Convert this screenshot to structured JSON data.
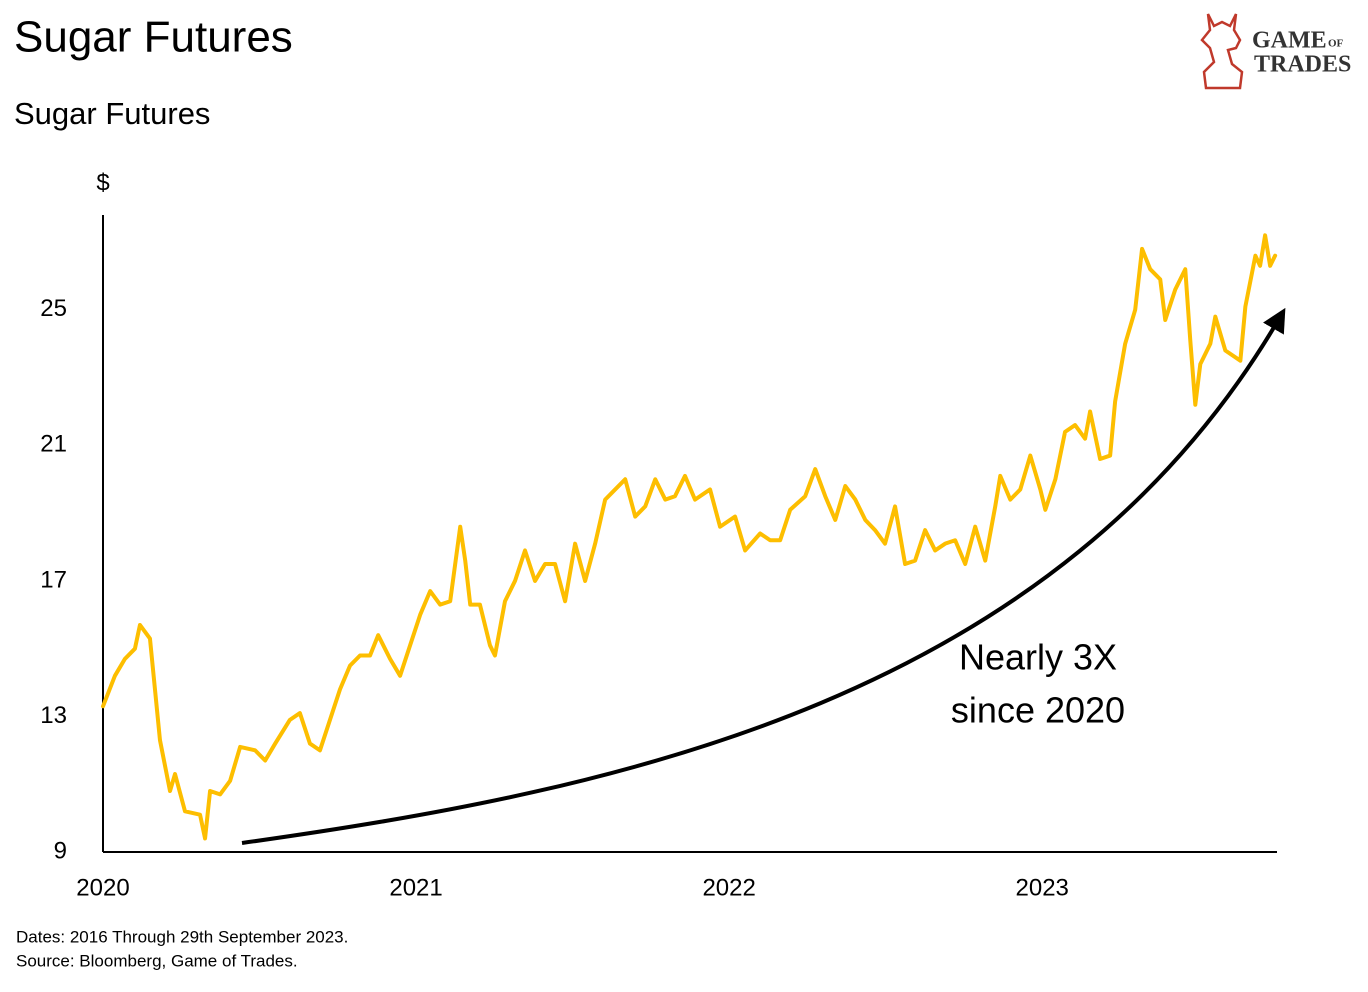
{
  "chart_data": {
    "type": "line",
    "title": "Sugar Futures",
    "subtitle": "Sugar Futures",
    "y_label": "$",
    "color": "#FDBE00",
    "xlim": [
      2020,
      2023.75
    ],
    "xticks": [
      2020,
      2021,
      2022,
      2023
    ],
    "ylim": [
      9,
      27.8
    ],
    "yticks": [
      9,
      13,
      17,
      21,
      25
    ],
    "grid": false,
    "annotation": [
      "Nearly 3X",
      "since 2020"
    ],
    "notes": [
      "Dates: 2016 Through 29th September 2023.",
      "Source: Bloomberg, Game of Trades."
    ],
    "x": [
      2020.0,
      2020.038,
      2020.07,
      2020.102,
      2020.118,
      2020.15,
      2020.182,
      2020.214,
      2020.23,
      2020.262,
      2020.31,
      2020.326,
      2020.342,
      2020.374,
      2020.406,
      2020.438,
      2020.486,
      2020.518,
      2020.55,
      2020.597,
      2020.629,
      2020.661,
      2020.693,
      2020.725,
      2020.757,
      2020.789,
      2020.821,
      2020.853,
      2020.879,
      2020.917,
      2020.949,
      2020.981,
      2021.013,
      2021.045,
      2021.077,
      2021.109,
      2021.141,
      2021.157,
      2021.173,
      2021.204,
      2021.236,
      2021.252,
      2021.284,
      2021.316,
      2021.348,
      2021.38,
      2021.412,
      2021.444,
      2021.476,
      2021.508,
      2021.54,
      2021.572,
      2021.604,
      2021.636,
      2021.668,
      2021.7,
      2021.732,
      2021.764,
      2021.796,
      2021.827,
      2021.859,
      2021.891,
      2021.939,
      2021.971,
      2022.019,
      2022.051,
      2022.099,
      2022.131,
      2022.163,
      2022.195,
      2022.243,
      2022.275,
      2022.307,
      2022.339,
      2022.371,
      2022.403,
      2022.435,
      2022.466,
      2022.498,
      2022.53,
      2022.562,
      2022.594,
      2022.626,
      2022.658,
      2022.69,
      2022.722,
      2022.754,
      2022.786,
      2022.818,
      2022.85,
      2022.866,
      2022.898,
      2022.93,
      2022.962,
      2022.994,
      2023.01,
      2023.042,
      2023.073,
      2023.105,
      2023.137,
      2023.153,
      2023.185,
      2023.217,
      2023.233,
      2023.265,
      2023.297,
      2023.319,
      2023.345,
      2023.377,
      2023.393,
      2023.425,
      2023.457,
      2023.473,
      2023.489,
      2023.505,
      2023.537,
      2023.553,
      2023.585,
      2023.633,
      2023.649,
      2023.681,
      2023.696,
      2023.712,
      2023.728,
      2023.744
    ],
    "values": [
      13.3,
      14.2,
      14.7,
      15.0,
      15.7,
      15.3,
      12.3,
      10.8,
      11.3,
      10.2,
      10.1,
      9.4,
      10.8,
      10.7,
      11.1,
      12.1,
      12.0,
      11.7,
      12.2,
      12.9,
      13.1,
      12.2,
      12.0,
      12.9,
      13.8,
      14.5,
      14.8,
      14.8,
      15.4,
      14.7,
      14.2,
      15.1,
      16.0,
      16.7,
      16.3,
      16.4,
      18.6,
      17.6,
      16.3,
      16.3,
      15.1,
      14.8,
      16.4,
      17.0,
      17.9,
      17.0,
      17.5,
      17.5,
      16.4,
      18.1,
      17.0,
      18.1,
      19.4,
      19.7,
      20.0,
      18.9,
      19.2,
      20.0,
      19.4,
      19.5,
      20.1,
      19.4,
      19.7,
      18.6,
      18.9,
      17.9,
      18.4,
      18.2,
      18.2,
      19.1,
      19.5,
      20.3,
      19.5,
      18.8,
      19.8,
      19.4,
      18.8,
      18.5,
      18.1,
      19.2,
      17.5,
      17.6,
      18.5,
      17.9,
      18.1,
      18.2,
      17.5,
      18.6,
      17.6,
      19.2,
      20.1,
      19.4,
      19.7,
      20.7,
      19.7,
      19.1,
      20.0,
      21.4,
      21.6,
      21.2,
      22.0,
      20.6,
      20.7,
      22.3,
      24.0,
      25.0,
      26.8,
      26.2,
      25.9,
      24.7,
      25.6,
      26.2,
      24.1,
      22.2,
      23.4,
      24.0,
      24.8,
      23.8,
      23.5,
      25.1,
      26.6,
      26.3,
      27.2,
      26.3,
      26.6
    ]
  },
  "logo": {
    "line1": "GAME",
    "small": "OF",
    "line2": "TRADES"
  }
}
